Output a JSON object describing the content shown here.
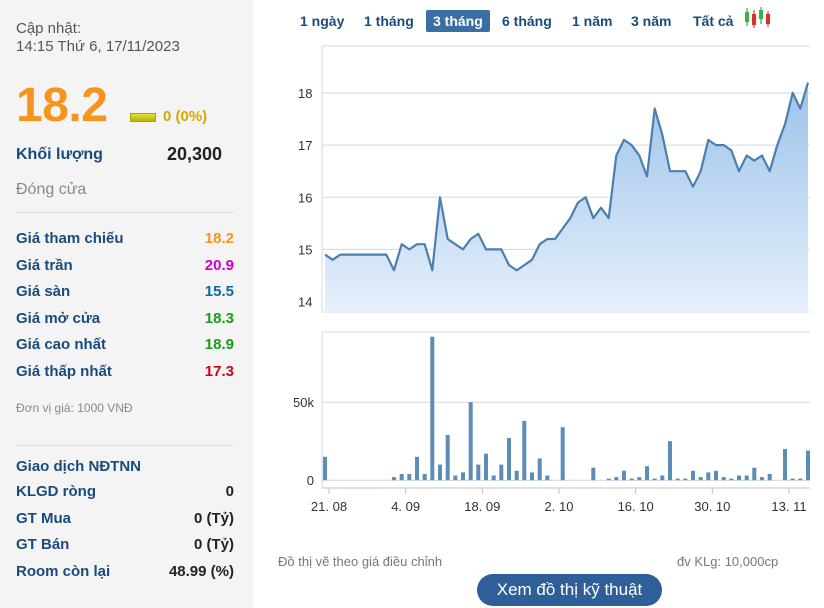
{
  "update": {
    "label": "Cập nhật:",
    "datetime": "14:15 Thứ 6, 17/11/2023"
  },
  "quote": {
    "price": "18.2",
    "change": "0 (0%)",
    "volume_label": "Khối lượng",
    "volume": "20,300",
    "session_status": "Đóng cửa"
  },
  "price_rows": [
    {
      "label": "Giá tham chiếu",
      "value": "18.2",
      "color": "#f7941d"
    },
    {
      "label": "Giá trần",
      "value": "20.9",
      "color": "#cc00cc"
    },
    {
      "label": "Giá sàn",
      "value": "15.5",
      "color": "#0b6aa2"
    },
    {
      "label": "Giá mở cửa",
      "value": "18.3",
      "color": "#1a9a1a"
    },
    {
      "label": "Giá cao nhất",
      "value": "18.9",
      "color": "#1a9a1a"
    },
    {
      "label": "Giá thấp nhất",
      "value": "17.3",
      "color": "#d4001a"
    }
  ],
  "unit_note": "Đơn vị giá: 1000 VNĐ",
  "foreign": {
    "title": "Giao dịch NĐTNN",
    "rows": [
      {
        "label": "KLGD ròng",
        "value": "0"
      },
      {
        "label": "GT Mua",
        "value": "0 (Tỷ)"
      },
      {
        "label": "GT Bán",
        "value": "0 (Tỷ)"
      },
      {
        "label": "Room còn lại",
        "value": "48.99 (%)"
      }
    ]
  },
  "tabs": [
    {
      "label": "1 ngày",
      "active": false
    },
    {
      "label": "1 tháng",
      "active": false
    },
    {
      "label": "3 tháng",
      "active": true
    },
    {
      "label": "6 tháng",
      "active": false
    },
    {
      "label": "1 năm",
      "active": false
    },
    {
      "label": "3 năm",
      "active": false
    },
    {
      "label": "Tất cả",
      "active": false
    }
  ],
  "candlestick_icon": "candlestick-chart-icon",
  "chart_note": "Đồ thị vẽ theo giá điều chỉnh",
  "volume_unit_note": "đv KLg: 10,000cp",
  "tech_button": "Xem đồ thị kỹ thuật",
  "colors": {
    "line": "#4a7fb0",
    "area_top": "#9cc2ea",
    "area_bottom": "#e6f0fb",
    "volume_bar": "#5b8db8",
    "grid": "#d0d8e0"
  },
  "chart_data": [
    {
      "type": "area",
      "ylim": [
        13.8,
        18.9
      ],
      "yticks": [
        14,
        15,
        16,
        17,
        18
      ],
      "values": [
        14.9,
        14.8,
        14.9,
        14.9,
        14.9,
        14.9,
        14.9,
        14.9,
        14.9,
        14.6,
        15.1,
        15.0,
        15.1,
        15.1,
        14.6,
        16.0,
        15.2,
        15.1,
        15.0,
        15.2,
        15.3,
        15.0,
        15.0,
        15.0,
        14.7,
        14.6,
        14.7,
        14.8,
        15.1,
        15.2,
        15.2,
        15.4,
        15.6,
        15.9,
        16.0,
        15.6,
        15.8,
        15.6,
        16.8,
        17.1,
        17.0,
        16.8,
        16.4,
        17.7,
        17.2,
        16.5,
        16.5,
        16.5,
        16.2,
        16.5,
        17.1,
        17.0,
        17.0,
        16.9,
        16.5,
        16.8,
        16.7,
        16.8,
        16.5,
        17.0,
        17.4,
        18.0,
        17.7,
        18.2
      ]
    },
    {
      "type": "bar",
      "yticks": [
        0,
        50
      ],
      "ytick_labels": [
        "0",
        "50k"
      ],
      "ylim": [
        -5,
        95
      ],
      "values": [
        15,
        0,
        0,
        0,
        0,
        0,
        0,
        0,
        0,
        2,
        4,
        4,
        15,
        4,
        92,
        10,
        29,
        3,
        5,
        50,
        10,
        17,
        3,
        10,
        27,
        6,
        38,
        5,
        14,
        3,
        0,
        34,
        0,
        0,
        0,
        8,
        0,
        1,
        2,
        6,
        1,
        2,
        9,
        1,
        3,
        25,
        1,
        1,
        6,
        2,
        5,
        6,
        2,
        1,
        3,
        3,
        8,
        2,
        4,
        0,
        20,
        1,
        1,
        19
      ],
      "xtick_labels": [
        "21. 08",
        "4. 09",
        "18. 09",
        "2. 10",
        "16. 10",
        "30. 10",
        "13. 11"
      ],
      "xtick_index": [
        0,
        10,
        20,
        30,
        40,
        50,
        60
      ]
    }
  ]
}
